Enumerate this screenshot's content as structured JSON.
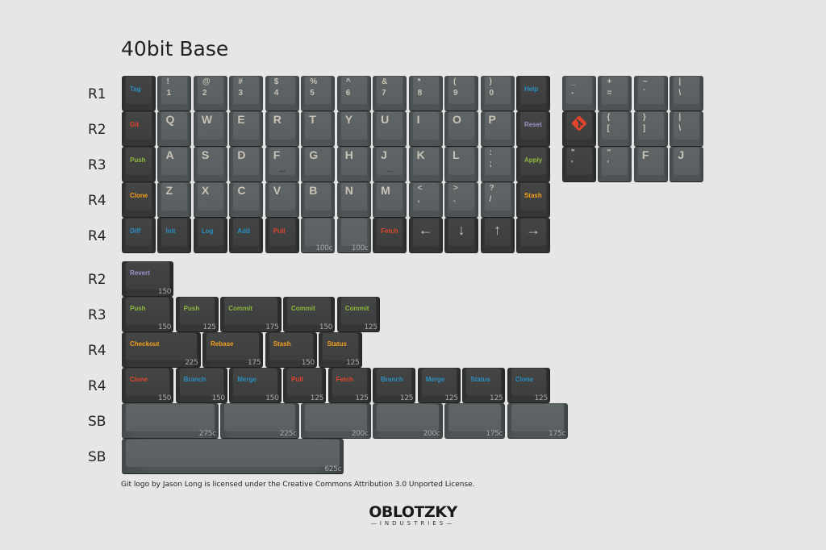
{
  "title": "40bit Base",
  "colors": {
    "blue": "#2a8fc2",
    "red": "#e2442c",
    "green": "#8db83c",
    "orange": "#f2a01c",
    "purple": "#9d91c8",
    "legend": "#c8c3b6"
  },
  "main_row_labels": [
    "R1",
    "R2",
    "R3",
    "R4",
    "R4"
  ],
  "main": [
    [
      {
        "mod": "Tag",
        "c": "blue",
        "dark": true
      },
      {
        "t": "!",
        "b": "1"
      },
      {
        "t": "@",
        "b": "2"
      },
      {
        "t": "#",
        "b": "3"
      },
      {
        "t": "$",
        "b": "4"
      },
      {
        "t": "%",
        "b": "5"
      },
      {
        "t": "^",
        "b": "6"
      },
      {
        "t": "&",
        "b": "7"
      },
      {
        "t": "*",
        "b": "8"
      },
      {
        "t": "(",
        "b": "9"
      },
      {
        "t": ")",
        "b": "0"
      },
      {
        "mod": "Help",
        "c": "blue",
        "dark": true
      }
    ],
    [
      {
        "mod": "Git",
        "c": "red",
        "dark": true
      },
      {
        "a": "Q"
      },
      {
        "a": "W"
      },
      {
        "a": "E"
      },
      {
        "a": "R"
      },
      {
        "a": "T"
      },
      {
        "a": "Y"
      },
      {
        "a": "U"
      },
      {
        "a": "I"
      },
      {
        "a": "O"
      },
      {
        "a": "P"
      },
      {
        "mod": "Reset",
        "c": "purple",
        "dark": true
      }
    ],
    [
      {
        "mod": "Push",
        "c": "green",
        "dark": true
      },
      {
        "a": "A"
      },
      {
        "a": "S"
      },
      {
        "a": "D"
      },
      {
        "a": "F",
        "homing": true
      },
      {
        "a": "G"
      },
      {
        "a": "H"
      },
      {
        "a": "J",
        "homing": true
      },
      {
        "a": "K"
      },
      {
        "a": "L"
      },
      {
        "t": ":",
        "b": ";"
      },
      {
        "mod": "Apply",
        "c": "green",
        "dark": true
      }
    ],
    [
      {
        "mod": "Clone",
        "c": "orange",
        "dark": true
      },
      {
        "a": "Z"
      },
      {
        "a": "X"
      },
      {
        "a": "C"
      },
      {
        "a": "V"
      },
      {
        "a": "B"
      },
      {
        "a": "N"
      },
      {
        "a": "M"
      },
      {
        "t": "<",
        "b": ","
      },
      {
        "t": ">",
        "b": "."
      },
      {
        "t": "?",
        "b": "/"
      },
      {
        "mod": "Stash",
        "c": "orange",
        "dark": true
      }
    ],
    [
      {
        "mod": "Diff",
        "c": "blue",
        "dark": true
      },
      {
        "mod": "Init",
        "c": "blue",
        "dark": true
      },
      {
        "mod": "Log",
        "c": "blue",
        "dark": true
      },
      {
        "mod": "Add",
        "c": "blue",
        "dark": true
      },
      {
        "mod": "Pull",
        "c": "red",
        "dark": true
      },
      {
        "size": "100c"
      },
      {
        "size": "100c"
      },
      {
        "mod": "Fetch",
        "c": "red",
        "dark": true
      },
      {
        "icon": "arrow-left-icon",
        "dark": true
      },
      {
        "icon": "arrow-down-icon",
        "dark": true
      },
      {
        "icon": "arrow-up-icon",
        "dark": true
      },
      {
        "icon": "arrow-right-icon",
        "dark": true
      }
    ]
  ],
  "extras": [
    [
      {
        "t": "_",
        "b": "-"
      },
      {
        "t": "+",
        "b": "="
      },
      {
        "t": "~",
        "b": "`"
      },
      {
        "t": "|",
        "b": "\\"
      }
    ],
    [
      {
        "icon": "git-logo-icon",
        "dark": true
      },
      {
        "t": "{",
        "b": "["
      },
      {
        "t": "}",
        "b": "]"
      },
      {
        "t": "|",
        "b": "\\"
      }
    ],
    [
      {
        "t": "\"",
        "b": "'",
        "dark": true
      },
      {
        "t": "\"",
        "b": "'"
      },
      {
        "a": "F"
      },
      {
        "a": "J"
      }
    ]
  ],
  "bottom_row_labels": [
    "R2",
    "R3",
    "R4",
    "R4",
    "SB",
    "SB"
  ],
  "bottom": [
    [
      {
        "mod": "Revert",
        "c": "purple",
        "dark": true,
        "size": "150"
      }
    ],
    [
      {
        "mod": "Push",
        "c": "green",
        "dark": true,
        "size": "150"
      },
      {
        "mod": "Push",
        "c": "green",
        "dark": true,
        "size": "125"
      },
      {
        "mod": "Commit",
        "c": "green",
        "dark": true,
        "size": "175"
      },
      {
        "mod": "Commit",
        "c": "green",
        "dark": true,
        "size": "150"
      },
      {
        "mod": "Commit",
        "c": "green",
        "dark": true,
        "size": "125"
      }
    ],
    [
      {
        "mod": "Checkout",
        "c": "orange",
        "dark": true,
        "size": "225"
      },
      {
        "mod": "Rebase",
        "c": "orange",
        "dark": true,
        "size": "175"
      },
      {
        "mod": "Stash",
        "c": "orange",
        "dark": true,
        "size": "150"
      },
      {
        "mod": "Status",
        "c": "orange",
        "dark": true,
        "size": "125"
      }
    ],
    [
      {
        "mod": "Clone",
        "c": "red",
        "dark": true,
        "size": "150"
      },
      {
        "mod": "Branch",
        "c": "blue",
        "dark": true,
        "size": "150"
      },
      {
        "mod": "Merge",
        "c": "blue",
        "dark": true,
        "size": "150"
      },
      {
        "mod": "Pull",
        "c": "red",
        "dark": true,
        "size": "125"
      },
      {
        "mod": "Fetch",
        "c": "red",
        "dark": true,
        "size": "125"
      },
      {
        "mod": "Branch",
        "c": "blue",
        "dark": true,
        "size": "125"
      },
      {
        "mod": "Merge",
        "c": "blue",
        "dark": true,
        "size": "125"
      },
      {
        "mod": "Status",
        "c": "blue",
        "dark": true,
        "size": "125"
      },
      {
        "mod": "Clone",
        "c": "blue",
        "dark": true,
        "size": "125"
      }
    ],
    [
      {
        "size": "275c"
      },
      {
        "size": "225c"
      },
      {
        "size": "200c"
      },
      {
        "size": "200c"
      },
      {
        "size": "175c"
      },
      {
        "size": "175c"
      }
    ],
    [
      {
        "size": "625c"
      }
    ]
  ],
  "credit": "Git logo by Jason Long is licensed under the Creative Commons Attribution 3.0 Unported License.",
  "logo": {
    "name": "OBLOTZKY",
    "sub": "—INDUSTRIES—"
  }
}
